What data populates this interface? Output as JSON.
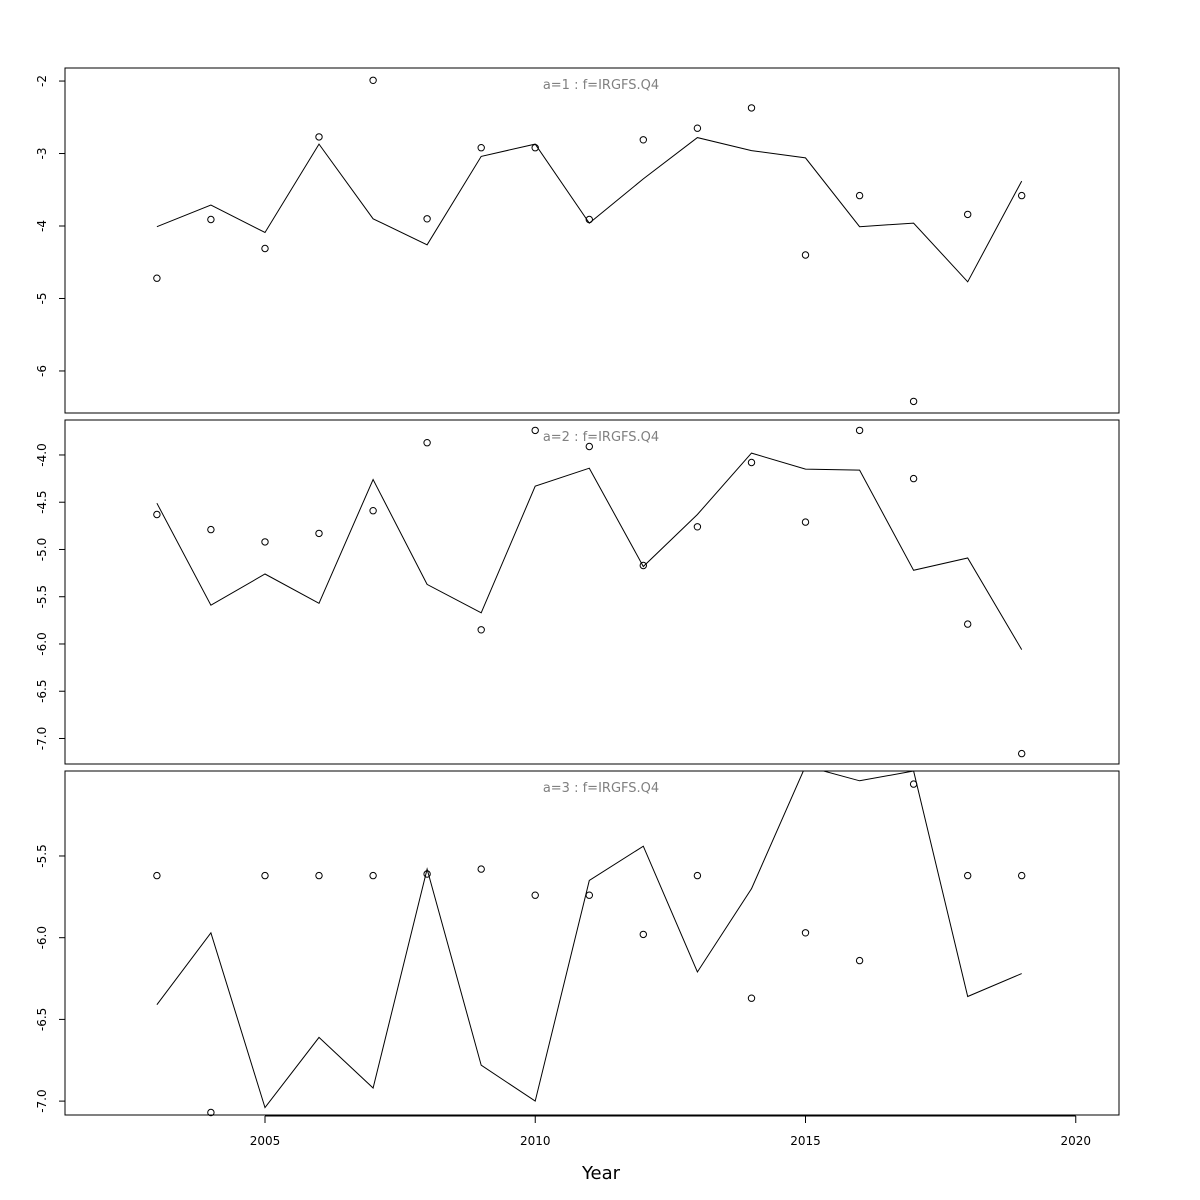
{
  "chart_data": {
    "type": "line",
    "xlabel": "Year",
    "xlim": [
      2001.3,
      2020.8
    ],
    "xticks": [
      2005,
      2010,
      2015,
      2020
    ],
    "x": [
      2003,
      2004,
      2005,
      2006,
      2007,
      2008,
      2009,
      2010,
      2011,
      2012,
      2013,
      2014,
      2015,
      2016,
      2017,
      2018,
      2019
    ],
    "panels": [
      {
        "title": "a=1  :  f=IRGFS.Q4",
        "ylim": [
          -6.58,
          -1.82
        ],
        "yticks": [
          -2,
          -3,
          -4,
          -5,
          -6
        ],
        "ytick_labels": [
          "-2",
          "-3",
          "-4",
          "-5",
          "-6"
        ],
        "series": [
          {
            "kind": "line",
            "values": [
              -4.01,
              -3.71,
              -4.09,
              -2.87,
              -3.9,
              -4.26,
              -3.04,
              -2.87,
              -3.96,
              -3.35,
              -2.78,
              -2.96,
              -3.06,
              -4.01,
              -3.96,
              -4.77,
              -3.38
            ]
          },
          {
            "kind": "points",
            "values": [
              -4.72,
              -3.91,
              -4.31,
              -2.77,
              -1.99,
              -3.9,
              -2.92,
              -2.92,
              -3.91,
              -2.81,
              -2.65,
              -2.37,
              -4.4,
              -3.58,
              -6.42,
              -3.84,
              -3.58
            ]
          }
        ]
      },
      {
        "title": "a=2  :  f=IRGFS.Q4",
        "ylim": [
          -7.27,
          -3.63
        ],
        "yticks": [
          -4.0,
          -4.5,
          -5.0,
          -5.5,
          -6.0,
          -6.5,
          -7.0
        ],
        "ytick_labels": [
          "-4.0",
          "-4.5",
          "-5.0",
          "-5.5",
          "-6.0",
          "-6.5",
          "-7.0"
        ],
        "series": [
          {
            "kind": "line",
            "values": [
              -4.51,
              -5.59,
              -5.26,
              -5.57,
              -4.26,
              -5.37,
              -5.67,
              -4.33,
              -4.14,
              -5.18,
              -4.63,
              -3.98,
              -4.15,
              -4.16,
              -5.22,
              -5.09,
              -6.06
            ]
          },
          {
            "kind": "points",
            "values": [
              -4.63,
              -4.79,
              -4.92,
              -4.83,
              -4.59,
              -3.87,
              -5.85,
              -3.74,
              -3.91,
              -5.17,
              -4.76,
              -4.08,
              -4.71,
              -3.74,
              -4.25,
              -5.79,
              -7.16
            ]
          }
        ]
      },
      {
        "title": "a=3  :  f=IRGFS.Q4",
        "ylim": [
          -7.085,
          -4.98
        ],
        "yticks": [
          -5.5,
          -6.0,
          -6.5,
          -7.0
        ],
        "ytick_labels": [
          "-5.5",
          "-6.0",
          "-6.5",
          "-7.0"
        ],
        "series": [
          {
            "kind": "line",
            "values": [
              -6.41,
              -5.97,
              -7.04,
              -6.61,
              -6.92,
              -5.58,
              -6.78,
              -7.0,
              -5.65,
              -5.44,
              -6.21,
              -5.7,
              -4.95,
              -5.04,
              -4.98,
              -6.36,
              -6.22
            ]
          },
          {
            "kind": "points",
            "values": [
              -5.62,
              -7.07,
              -5.62,
              -5.62,
              -5.62,
              -5.61,
              -5.58,
              -5.74,
              -5.74,
              -5.98,
              -5.62,
              -6.37,
              -5.97,
              -6.14,
              -5.06,
              -5.62,
              -5.62
            ]
          }
        ]
      }
    ]
  }
}
